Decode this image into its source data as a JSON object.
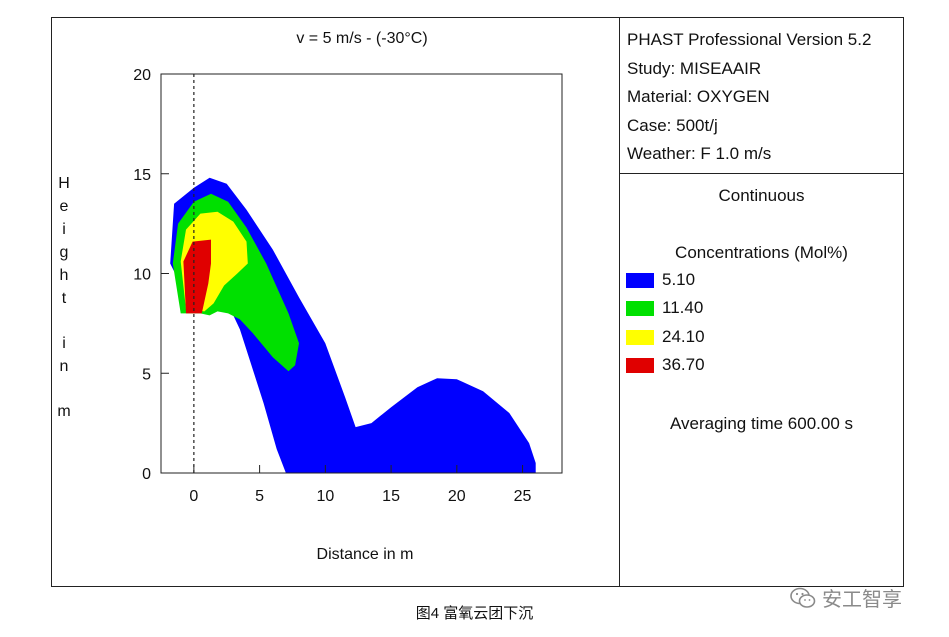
{
  "chart_data": {
    "type": "contour",
    "title": "v = 5 m/s  - (-30°C)",
    "xlabel": "Distance in m",
    "ylabel": "Height in m",
    "xlim": [
      -2.5,
      28
    ],
    "ylim": [
      0,
      20
    ],
    "x_ticks": [
      0,
      5,
      10,
      15,
      20,
      25
    ],
    "y_ticks": [
      0,
      5,
      10,
      15,
      20
    ],
    "reference_line_x": 0,
    "levels": [
      {
        "label": "5.10",
        "color": "#0000ff",
        "outline": [
          [
            -0.3,
            8.5
          ],
          [
            -1.8,
            10.5
          ],
          [
            -1.5,
            13.5
          ],
          [
            0,
            14.3
          ],
          [
            1.2,
            14.8
          ],
          [
            2.5,
            14.5
          ],
          [
            4,
            13.2
          ],
          [
            6,
            11.2
          ],
          [
            8,
            8.8
          ],
          [
            10,
            6.5
          ],
          [
            11.5,
            3.8
          ],
          [
            12.3,
            2.3
          ],
          [
            13.5,
            2.5
          ],
          [
            15,
            3.3
          ],
          [
            17,
            4.3
          ],
          [
            18.5,
            4.75
          ],
          [
            20,
            4.7
          ],
          [
            22,
            4.1
          ],
          [
            24,
            3
          ],
          [
            25.5,
            1.5
          ],
          [
            26,
            0.5
          ],
          [
            26,
            0
          ],
          [
            7,
            0
          ],
          [
            6.3,
            1.2
          ],
          [
            5.3,
            3.5
          ],
          [
            3.5,
            7.2
          ],
          [
            2.5,
            8.6
          ],
          [
            1.7,
            8.4
          ],
          [
            1.2,
            8.2
          ],
          [
            0.5,
            8.6
          ]
        ]
      },
      {
        "label": "11.40",
        "color": "#00e000",
        "outline": [
          [
            -1,
            8
          ],
          [
            -1.6,
            10.5
          ],
          [
            -1.2,
            12.5
          ],
          [
            0,
            13.6
          ],
          [
            1.3,
            14
          ],
          [
            2.6,
            13.6
          ],
          [
            4,
            12.3
          ],
          [
            5.5,
            10.5
          ],
          [
            7.2,
            8
          ],
          [
            8,
            6.5
          ],
          [
            7.7,
            5.4
          ],
          [
            7.2,
            5.1
          ],
          [
            6,
            5.8
          ],
          [
            4.5,
            7
          ],
          [
            3.5,
            7.7
          ],
          [
            2.6,
            8
          ],
          [
            1.8,
            8.1
          ],
          [
            1.2,
            7.9
          ],
          [
            0.5,
            8
          ]
        ]
      },
      {
        "label": "24.10",
        "color": "#ffff00",
        "outline": [
          [
            -0.6,
            8.2
          ],
          [
            -1,
            10.6
          ],
          [
            -0.6,
            12.2
          ],
          [
            0.5,
            13
          ],
          [
            1.8,
            13.1
          ],
          [
            3,
            12.6
          ],
          [
            4,
            11.6
          ],
          [
            4.1,
            10.5
          ],
          [
            3.3,
            10
          ],
          [
            2.3,
            9.4
          ],
          [
            1.5,
            8.5
          ],
          [
            0.8,
            8.1
          ]
        ]
      },
      {
        "label": "36.70",
        "color": "#e00000",
        "outline": [
          [
            -0.6,
            8
          ],
          [
            -0.8,
            10.6
          ],
          [
            -0.1,
            11.6
          ],
          [
            1.3,
            11.7
          ],
          [
            1.3,
            10.5
          ],
          [
            1.1,
            9.5
          ],
          [
            0.8,
            8.6
          ],
          [
            0.6,
            8
          ]
        ]
      }
    ]
  },
  "info": {
    "software": "PHAST Professional Version 5.2",
    "study": "Study: MISEAAIR",
    "material": "Material: OXYGEN",
    "case": "Case: 500t/j",
    "weather": "Weather: F 1.0 m/s",
    "mode": "Continuous",
    "concentrations_title": "Concentrations (Mol%)",
    "averaging_time": "Averaging time 600.00 s"
  },
  "caption": "图4 富氧云团下沉",
  "watermark": "安工智享",
  "icons": {
    "watermark": "wechat-icon"
  }
}
